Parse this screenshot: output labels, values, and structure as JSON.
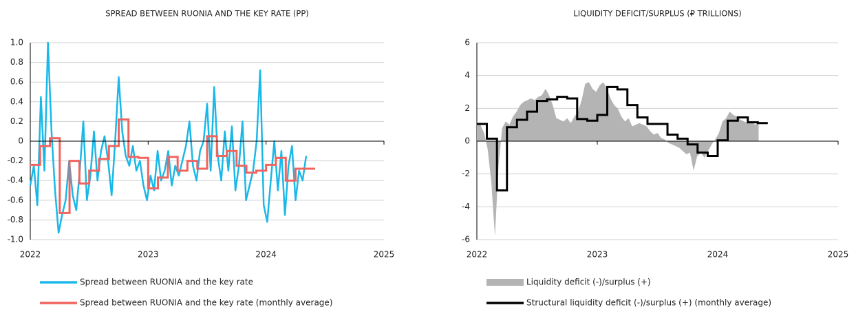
{
  "chart_data": [
    {
      "type": "line",
      "title": "SPREAD BETWEEN RUONIA AND THE KEY RATE (PP)",
      "xlim": [
        2022,
        2025
      ],
      "xticks": [
        2022,
        2023,
        2024,
        2025
      ],
      "ylim": [
        -1,
        1
      ],
      "yticks": [
        {
          "value": 1,
          "label": "1.0"
        },
        0.8,
        0.6,
        0.4,
        0.2,
        0,
        -0.2,
        -0.4,
        -0.6,
        -0.8,
        {
          "value": -1,
          "label": "-1.0"
        }
      ],
      "grid": true,
      "series": [
        {
          "name": "Spread between RUONIA and the key rate",
          "color": "#1ab8e8",
          "type": "line",
          "x": [
            2022,
            2022.03,
            2022.06,
            2022.09,
            2022.12,
            2022.15,
            2022.18,
            2022.21,
            2022.24,
            2022.27,
            2022.3,
            2022.33,
            2022.36,
            2022.39,
            2022.42,
            2022.45,
            2022.48,
            2022.51,
            2022.54,
            2022.57,
            2022.6,
            2022.63,
            2022.66,
            2022.69,
            2022.72,
            2022.75,
            2022.78,
            2022.81,
            2022.84,
            2022.87,
            2022.9,
            2022.93,
            2022.96,
            2022.99,
            2023.02,
            2023.05,
            2023.08,
            2023.11,
            2023.14,
            2023.17,
            2023.2,
            2023.23,
            2023.26,
            2023.29,
            2023.32,
            2023.35,
            2023.38,
            2023.41,
            2023.44,
            2023.47,
            2023.5,
            2023.53,
            2023.56,
            2023.59,
            2023.62,
            2023.65,
            2023.68,
            2023.71,
            2023.74,
            2023.77,
            2023.8,
            2023.83,
            2023.86,
            2023.89,
            2023.92,
            2023.95,
            2023.98,
            2024.01,
            2024.04,
            2024.07,
            2024.1,
            2024.13,
            2024.16,
            2024.19,
            2024.22,
            2024.25,
            2024.28,
            2024.31,
            2024.34
          ],
          "values": [
            -0.45,
            -0.25,
            -0.65,
            0.45,
            -0.3,
            1,
            0.1,
            -0.5,
            -0.93,
            -0.75,
            -0.6,
            -0.2,
            -0.55,
            -0.7,
            -0.3,
            0.2,
            -0.6,
            -0.35,
            0.1,
            -0.4,
            -0.1,
            0.05,
            -0.2,
            -0.55,
            0,
            0.65,
            0.1,
            -0.15,
            -0.25,
            -0.05,
            -0.3,
            -0.2,
            -0.45,
            -0.6,
            -0.35,
            -0.5,
            -0.1,
            -0.4,
            -0.3,
            -0.1,
            -0.45,
            -0.25,
            -0.35,
            -0.2,
            -0.05,
            0.2,
            -0.25,
            -0.4,
            -0.1,
            0,
            0.38,
            -0.3,
            0.55,
            -0.15,
            -0.4,
            0.1,
            -0.3,
            0.15,
            -0.5,
            -0.25,
            0.2,
            -0.6,
            -0.45,
            -0.3,
            0,
            0.72,
            -0.65,
            -0.82,
            -0.4,
            0,
            -0.5,
            -0.1,
            -0.75,
            -0.25,
            -0.05,
            -0.6,
            -0.3,
            -0.4,
            -0.15
          ]
        },
        {
          "name": "Spread between RUONIA and the key rate (monthly average)",
          "color": "#f0645f",
          "type": "step",
          "x": [
            2022,
            2022.083,
            2022.167,
            2022.25,
            2022.333,
            2022.417,
            2022.5,
            2022.583,
            2022.667,
            2022.75,
            2022.833,
            2022.917,
            2023,
            2023.083,
            2023.167,
            2023.25,
            2023.333,
            2023.417,
            2023.5,
            2023.583,
            2023.667,
            2023.75,
            2023.833,
            2023.917,
            2024,
            2024.083,
            2024.167,
            2024.25,
            2024.333
          ],
          "values": [
            -0.24,
            -0.05,
            0.03,
            -0.73,
            -0.2,
            -0.43,
            -0.3,
            -0.18,
            -0.05,
            0.22,
            -0.16,
            -0.17,
            -0.48,
            -0.37,
            -0.16,
            -0.3,
            -0.2,
            -0.28,
            0.05,
            -0.15,
            -0.1,
            -0.25,
            -0.32,
            -0.3,
            -0.24,
            -0.17,
            -0.4,
            -0.28,
            -0.28
          ]
        }
      ]
    },
    {
      "type": "area",
      "title": "LIQUIDITY DEFICIT/SURPLUS (₽ TRILLIONS)",
      "xlim": [
        2022,
        2025
      ],
      "xticks": [
        2022,
        2023,
        2024,
        2025
      ],
      "ylim": [
        -6,
        6
      ],
      "yticks": [
        6,
        4,
        2,
        0,
        -2,
        -4,
        -6
      ],
      "grid": true,
      "series": [
        {
          "name": "Liquidity deficit (-)/surplus (+)",
          "color": "#b4b4b4",
          "type": "area",
          "x": [
            2022,
            2022.03,
            2022.06,
            2022.09,
            2022.12,
            2022.15,
            2022.18,
            2022.21,
            2022.24,
            2022.27,
            2022.3,
            2022.33,
            2022.36,
            2022.39,
            2022.42,
            2022.45,
            2022.48,
            2022.51,
            2022.54,
            2022.57,
            2022.6,
            2022.63,
            2022.66,
            2022.69,
            2022.72,
            2022.75,
            2022.78,
            2022.81,
            2022.84,
            2022.87,
            2022.9,
            2022.93,
            2022.96,
            2022.99,
            2023.02,
            2023.05,
            2023.08,
            2023.11,
            2023.14,
            2023.17,
            2023.2,
            2023.23,
            2023.26,
            2023.29,
            2023.32,
            2023.35,
            2023.38,
            2023.41,
            2023.44,
            2023.47,
            2023.5,
            2023.53,
            2023.56,
            2023.59,
            2023.62,
            2023.65,
            2023.68,
            2023.71,
            2023.74,
            2023.77,
            2023.8,
            2023.83,
            2023.86,
            2023.89,
            2023.92,
            2023.95,
            2023.98,
            2024.01,
            2024.04,
            2024.07,
            2024.1,
            2024.13,
            2024.16,
            2024.19,
            2024.22,
            2024.25,
            2024.28,
            2024.31,
            2024.34
          ],
          "values": [
            1.2,
            1,
            0.5,
            -0.5,
            -2.5,
            -5.8,
            -1.5,
            0.8,
            1.2,
            1,
            1.5,
            1.8,
            2.2,
            2.4,
            2.5,
            2.6,
            2.5,
            2.7,
            2.8,
            3.2,
            2.8,
            2.2,
            1.4,
            1.3,
            1.2,
            1.4,
            1.1,
            1.5,
            1.8,
            2.5,
            3.5,
            3.6,
            3.2,
            3,
            3.4,
            3.6,
            3.2,
            2.6,
            2.2,
            2,
            1.5,
            1.2,
            1.4,
            0.9,
            1,
            1.1,
            1,
            0.9,
            0.6,
            0.4,
            0.5,
            0.2,
            0.1,
            -0.1,
            -0.2,
            -0.3,
            -0.4,
            -0.6,
            -0.8,
            -0.7,
            -1.8,
            -0.9,
            -0.7,
            -1,
            -0.6,
            -0.2,
            0.1,
            0.5,
            1.2,
            1.4,
            1.8,
            1.6,
            1.5,
            1.3,
            1.2,
            1.1,
            1.2,
            1,
            1.1
          ]
        },
        {
          "name": "Structural liquidity deficit (-)/surplus (+) (monthly average)",
          "color": "#000000",
          "type": "step",
          "x": [
            2022,
            2022.083,
            2022.167,
            2022.25,
            2022.333,
            2022.417,
            2022.5,
            2022.583,
            2022.667,
            2022.75,
            2022.833,
            2022.917,
            2023,
            2023.083,
            2023.167,
            2023.25,
            2023.333,
            2023.417,
            2023.5,
            2023.583,
            2023.667,
            2023.75,
            2023.833,
            2023.917,
            2024,
            2024.083,
            2024.167,
            2024.25,
            2024.333
          ],
          "values": [
            1.05,
            0.15,
            -3,
            0.85,
            1.3,
            1.8,
            2.45,
            2.55,
            2.7,
            2.6,
            1.35,
            1.25,
            1.6,
            3.3,
            3.15,
            2.2,
            1.45,
            1.05,
            1.05,
            0.4,
            0.15,
            -0.2,
            -0.7,
            -0.9,
            0.05,
            1.25,
            1.45,
            1.15,
            1.1
          ]
        }
      ]
    }
  ]
}
